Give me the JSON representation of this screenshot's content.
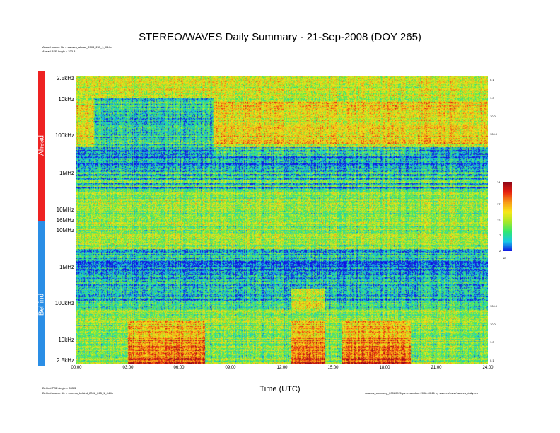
{
  "title": "STEREO/WAVES Daily Summary - 21-Sep-2008 (DOY 265)",
  "header_notes": [
    "Ahead source file = swaves_ahead_2008_265_1_04.lin",
    "Ahead PSE Angle = 333.3"
  ],
  "footer_left": [
    "Behind PSE Angle = 333.3",
    "Behind source file = swaves_behind_2008_265_1_04.lin"
  ],
  "footer_right": "swaves_summary_20080921.ps created on 2008-10-21 by swaves/www/swaves_daily.pro",
  "colors": {
    "ahead_bar": "#ee2222",
    "behind_bar": "#2a8ee6"
  },
  "chart_data": {
    "type": "heatmap",
    "xlabel": "Time (UTC)",
    "x_ticks": [
      "00:00",
      "03:00",
      "06:00",
      "09:00",
      "12:00",
      "15:00",
      "18:00",
      "21:00",
      "24:00"
    ],
    "panels": [
      {
        "name": "Ahead",
        "y_ticks": [
          "2.5kHz",
          "10kHz",
          "100kHz",
          "1MHz",
          "10MHz",
          "16MHz"
        ],
        "scale": "log"
      },
      {
        "name": "Behind",
        "y_ticks": [
          "10MHz",
          "1MHz",
          "100kHz",
          "10kHz",
          "2.5kHz"
        ],
        "scale": "log"
      }
    ],
    "right_ticks_ahead": [
      "0.1",
      "1.0",
      "10.0",
      "100.0"
    ],
    "right_ticks_behind": [
      "100.0",
      "10.0",
      "1.0",
      "0.1"
    ],
    "colorbar": {
      "ticks": [
        "24",
        "17",
        "12",
        "7",
        "2"
      ],
      "unit": "dB",
      "range": [
        2,
        24
      ]
    },
    "colorscale": [
      "#1010e0",
      "#18c8e8",
      "#30e870",
      "#a8e828",
      "#f8e818",
      "#f89818",
      "#e82010",
      "#900818"
    ],
    "features": [
      {
        "panel": "Ahead",
        "description": "low intensity blue region 01:00-08:00 at 20-200kHz"
      },
      {
        "panel": "Behind",
        "description": "bursts 02:30-07:30, 12:30-14:30, 15:30-19:30 at 2.5-100kHz"
      }
    ]
  }
}
